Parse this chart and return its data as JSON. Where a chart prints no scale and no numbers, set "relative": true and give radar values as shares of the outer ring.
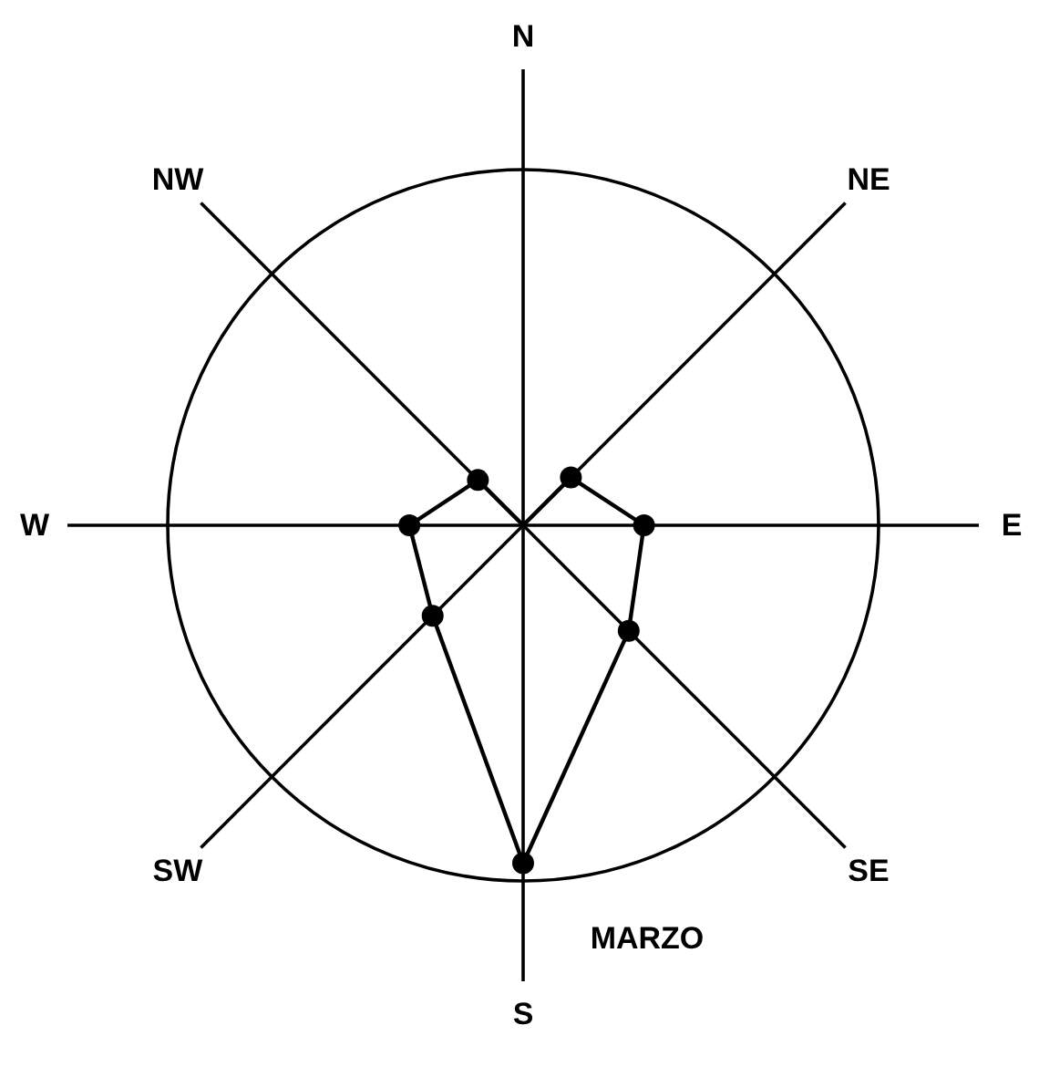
{
  "chart_data": {
    "type": "radar",
    "relative": true,
    "categories": [
      "N",
      "NE",
      "E",
      "SE",
      "S",
      "SW",
      "W",
      "NW"
    ],
    "marker": "circle",
    "annotations": [
      "MARZO"
    ],
    "series": [
      {
        "color": "#000000",
        "values": [
          0,
          0.19,
          0.34,
          0.42,
          0.95,
          0.36,
          0.32,
          0.18
        ]
      }
    ]
  }
}
